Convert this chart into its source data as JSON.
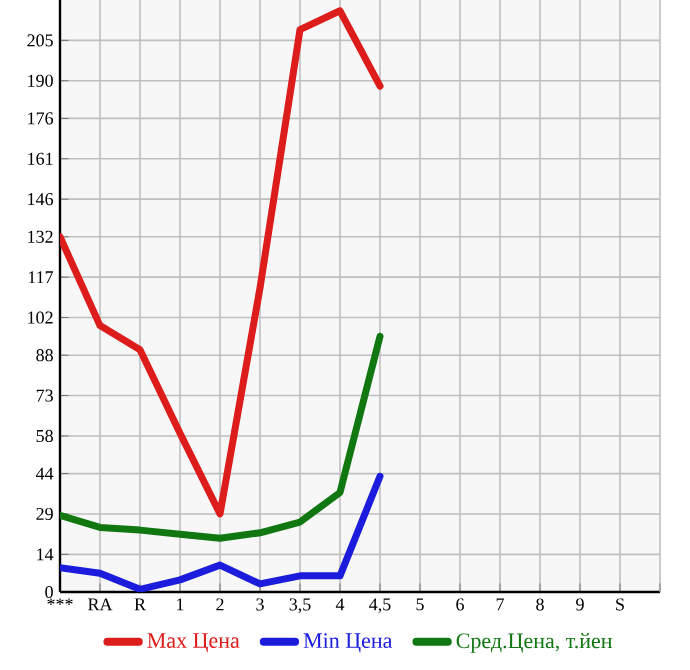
{
  "chart_data": {
    "type": "line",
    "categories": [
      "***",
      "RA",
      "R",
      "1",
      "2",
      "3",
      "3,5",
      "4",
      "4,5",
      "5",
      "6",
      "7",
      "8",
      "9",
      "S"
    ],
    "ylim": [
      0,
      220
    ],
    "yticks": [
      0,
      14,
      29,
      44,
      58,
      73,
      88,
      102,
      117,
      132,
      146,
      161,
      176,
      190,
      205
    ],
    "grid": true,
    "legend": "bottom",
    "marker": "none",
    "line_style": "solid",
    "series": [
      {
        "name": "Max Цена",
        "color": "#dd1c1c",
        "values": [
          132,
          99,
          90,
          59,
          29,
          113,
          209,
          216,
          188,
          null,
          null,
          null,
          null,
          null,
          null
        ]
      },
      {
        "name": "Min Цена",
        "color": "#1c1cdd",
        "values": [
          9,
          7,
          1,
          4.5,
          10,
          3,
          6,
          6,
          43,
          null,
          null,
          null,
          null,
          null,
          null
        ]
      },
      {
        "name": "Сред.Цена, т.йен",
        "color": "#117711",
        "values": [
          28.5,
          24,
          23,
          21.5,
          20,
          22,
          26,
          37,
          95,
          null,
          null,
          null,
          null,
          null,
          null
        ]
      }
    ]
  }
}
